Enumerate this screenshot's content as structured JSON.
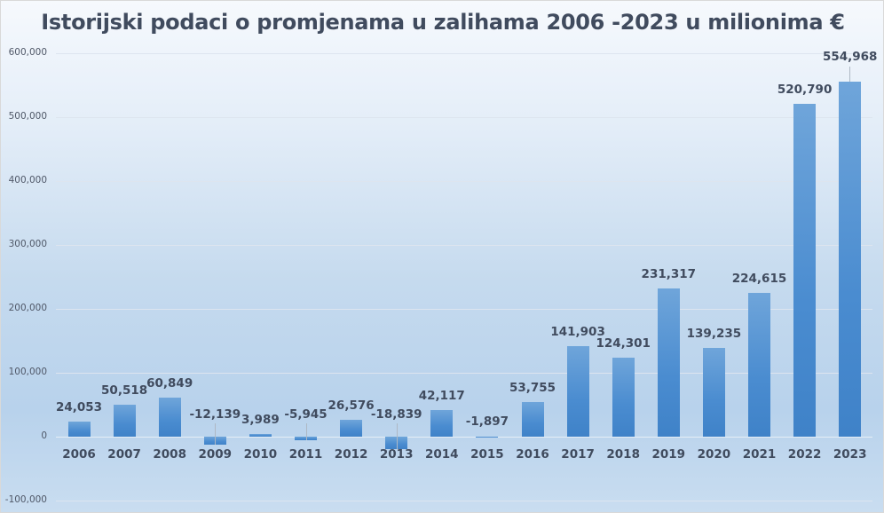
{
  "chart_data": {
    "type": "bar",
    "title": "Istorijski podaci o promjenama u zalihama 2006 -2023 u milionima €",
    "xlabel": "",
    "ylabel": "",
    "categories": [
      "2006",
      "2007",
      "2008",
      "2009",
      "2010",
      "2011",
      "2012",
      "2013",
      "2014",
      "2015",
      "2016",
      "2017",
      "2018",
      "2019",
      "2020",
      "2021",
      "2022",
      "2023"
    ],
    "values": [
      24053,
      50518,
      60849,
      -12139,
      3989,
      -5945,
      26576,
      -18839,
      42117,
      -1897,
      53755,
      141903,
      124301,
      231317,
      139235,
      224615,
      520790,
      554968
    ],
    "value_labels": [
      "24,053",
      "50,518",
      "60,849",
      "-12,139",
      "3,989",
      "-5,945",
      "26,576",
      "-18,839",
      "42,117",
      "-1,897",
      "53,755",
      "141,903",
      "124,301",
      "231,317",
      "139,235",
      "224,615",
      "520,790",
      "554,968"
    ],
    "ylim": [
      -100000,
      600000
    ],
    "yticks": [
      "600,000",
      "500,000",
      "400,000",
      "300,000",
      "200,000",
      "100,000",
      "0",
      "-100,000"
    ],
    "grid": true,
    "legend": "none",
    "bar_color": "#4a8cd0"
  }
}
